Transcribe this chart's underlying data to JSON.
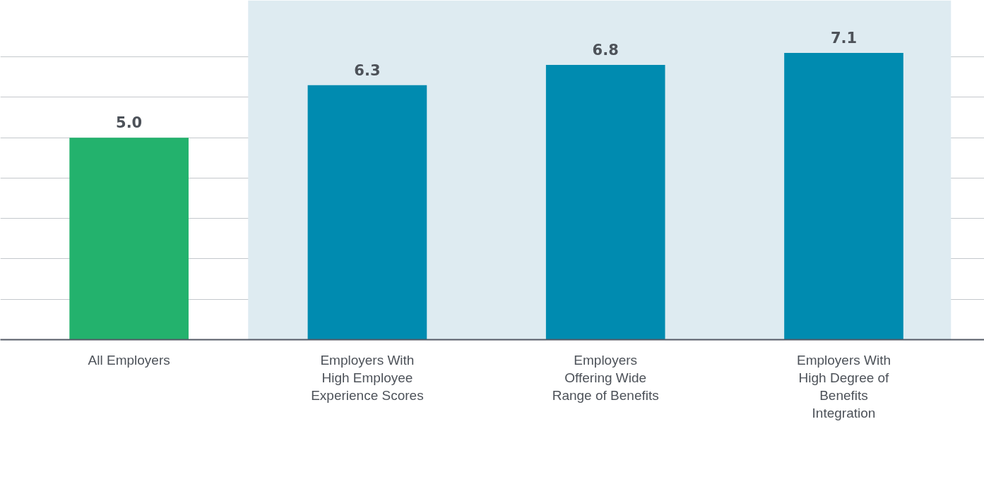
{
  "chart_data": {
    "type": "bar",
    "categories": [
      "All Employers",
      "Employers With High Employee Experience Scores",
      "Employers Offering Wide Range of Benefits",
      "Employers With High Degree of Benefits Integration"
    ],
    "values": [
      5.0,
      6.3,
      6.8,
      7.1
    ],
    "colors": [
      "#23b26d",
      "#008bb0",
      "#008bb0",
      "#008bb0"
    ],
    "value_labels": [
      "5.0",
      "6.3",
      "6.8",
      "7.1"
    ],
    "ylim": [
      0,
      8.4
    ],
    "yticks": [
      {
        "value": 1,
        "label": null
      },
      {
        "value": 2,
        "label": null
      },
      {
        "value": 3,
        "label": null
      },
      {
        "value": 4,
        "label": null
      },
      {
        "value": 5,
        "label": null
      },
      {
        "value": 6,
        "label": null
      },
      {
        "value": 7,
        "label": null
      }
    ],
    "tick_labels": "x",
    "grid": "y",
    "bands": [
      {
        "axis": "x",
        "from": "Employers With High Employee Experience Scores",
        "to": "Employers With High Degree of Benefits Integration",
        "color": "#deebf1"
      }
    ]
  }
}
